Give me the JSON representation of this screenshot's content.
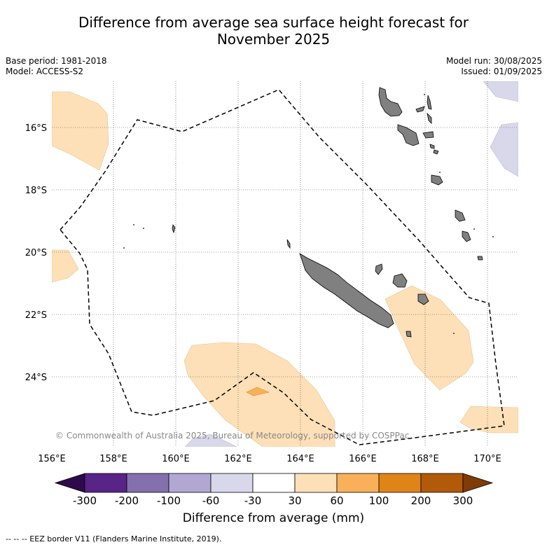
{
  "title_line1": "Difference from average sea surface height forecast for",
  "title_line2": "November 2025",
  "meta_left": [
    "Base period: 1981-2018",
    "Model: ACCESS-S2"
  ],
  "meta_right": [
    "Model run: 30/08/2025",
    "Issued: 01/09/2025"
  ],
  "map": {
    "lon_ticks": [
      "156°E",
      "158°E",
      "160°E",
      "162°E",
      "164°E",
      "166°E",
      "168°E",
      "170°E"
    ],
    "lat_ticks": [
      "16°S",
      "18°S",
      "20°S",
      "22°S",
      "24°S"
    ],
    "copyright": "© Commonwealth of Australia 2025, Bureau of Meteorology, supported by COSPPac",
    "colors": {
      "land": "#808080",
      "anomaly_30_60": "#fde0b7",
      "anomaly_60_100": "#f8b15a",
      "anomaly_neg30_neg60": "#d8d8ea"
    }
  },
  "colorbar": {
    "ticks": [
      "-300",
      "-200",
      "-100",
      "-60",
      "-30",
      "30",
      "60",
      "100",
      "200",
      "300"
    ],
    "colors": [
      "#2d0a4b",
      "#582488",
      "#8470ad",
      "#b0a8d2",
      "#d8d8ea",
      "#ffffff",
      "#fde0b7",
      "#f8b15a",
      "#e08418",
      "#b05a0a",
      "#7f3b08"
    ],
    "label": "Difference from average (mm)"
  },
  "footnote": "--  --  -- EEZ border V11 (Flanders Marine Institute, 2019)."
}
